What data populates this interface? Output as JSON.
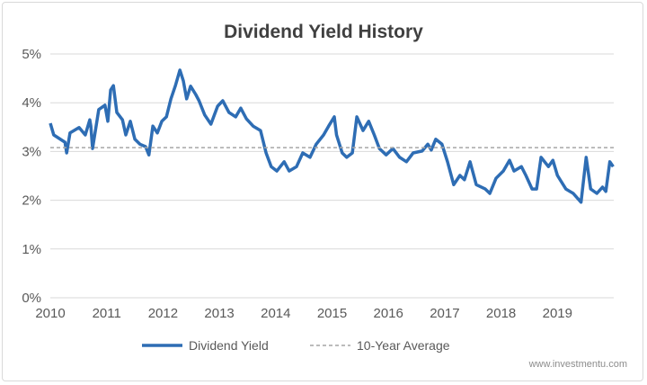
{
  "chart_data": {
    "type": "line",
    "title": "Dividend Yield History",
    "xlabel": "",
    "ylabel": "",
    "xlim": [
      2010,
      2020
    ],
    "ylim": [
      0,
      5
    ],
    "x_ticks": [
      "2010",
      "2011",
      "2012",
      "2013",
      "2014",
      "2015",
      "2016",
      "2017",
      "2018",
      "2019"
    ],
    "y_ticks": [
      "0%",
      "1%",
      "2%",
      "3%",
      "4%",
      "5%"
    ],
    "grid": "horizontal",
    "legend": "bottom",
    "series": [
      {
        "name": "Dividend Yield",
        "color": "#2e6db4",
        "style": "solid",
        "x": [
          2010.0,
          2010.06,
          2010.26,
          2010.29,
          2010.35,
          2010.51,
          2010.62,
          2010.7,
          2010.72,
          2010.75,
          2010.86,
          2010.97,
          2011.02,
          2011.07,
          2011.12,
          2011.18,
          2011.28,
          2011.34,
          2011.42,
          2011.5,
          2011.59,
          2011.69,
          2011.75,
          2011.82,
          2011.9,
          2011.98,
          2012.06,
          2012.14,
          2012.22,
          2012.3,
          2012.36,
          2012.42,
          2012.49,
          2012.58,
          2012.64,
          2012.74,
          2012.85,
          2012.97,
          2013.06,
          2013.17,
          2013.29,
          2013.38,
          2013.48,
          2013.6,
          2013.73,
          2013.83,
          2013.92,
          2014.02,
          2014.15,
          2014.24,
          2014.37,
          2014.48,
          2014.61,
          2014.72,
          2014.85,
          2014.94,
          2015.04,
          2015.08,
          2015.18,
          2015.26,
          2015.36,
          2015.44,
          2015.55,
          2015.65,
          2015.75,
          2015.84,
          2015.96,
          2016.08,
          2016.2,
          2016.32,
          2016.44,
          2016.6,
          2016.7,
          2016.76,
          2016.84,
          2016.95,
          2017.05,
          2017.16,
          2017.27,
          2017.35,
          2017.45,
          2017.56,
          2017.72,
          2017.8,
          2017.91,
          2018.04,
          2018.15,
          2018.23,
          2018.36,
          2018.44,
          2018.55,
          2018.63,
          2018.71,
          2018.84,
          2018.92,
          2019.0,
          2019.15,
          2019.28,
          2019.42,
          2019.51,
          2019.59,
          2019.7,
          2019.8,
          2019.86,
          2019.93,
          2019.99
        ],
        "y": [
          3.58,
          3.34,
          3.19,
          2.97,
          3.38,
          3.49,
          3.34,
          3.65,
          3.52,
          3.06,
          3.86,
          3.95,
          3.62,
          4.26,
          4.35,
          3.8,
          3.65,
          3.34,
          3.62,
          3.25,
          3.15,
          3.1,
          2.93,
          3.52,
          3.38,
          3.62,
          3.71,
          4.08,
          4.35,
          4.67,
          4.45,
          4.08,
          4.34,
          4.17,
          4.04,
          3.75,
          3.56,
          3.93,
          4.04,
          3.8,
          3.71,
          3.89,
          3.67,
          3.52,
          3.43,
          2.97,
          2.69,
          2.6,
          2.79,
          2.6,
          2.69,
          2.97,
          2.88,
          3.15,
          3.34,
          3.52,
          3.71,
          3.34,
          2.97,
          2.88,
          2.97,
          3.71,
          3.43,
          3.62,
          3.34,
          3.06,
          2.93,
          3.06,
          2.88,
          2.79,
          2.97,
          3.01,
          3.15,
          3.03,
          3.25,
          3.15,
          2.79,
          2.32,
          2.51,
          2.42,
          2.79,
          2.32,
          2.23,
          2.14,
          2.45,
          2.6,
          2.82,
          2.6,
          2.69,
          2.51,
          2.23,
          2.23,
          2.88,
          2.69,
          2.82,
          2.51,
          2.23,
          2.14,
          1.96,
          2.88,
          2.23,
          2.14,
          2.27,
          2.18,
          2.79,
          2.69
        ]
      },
      {
        "name": "10-Year Average",
        "color": "#a6a6a6",
        "style": "dashed",
        "x": [
          2010,
          2020
        ],
        "y": [
          3.08,
          3.08
        ]
      }
    ]
  },
  "watermark": "www.investmentu.com"
}
